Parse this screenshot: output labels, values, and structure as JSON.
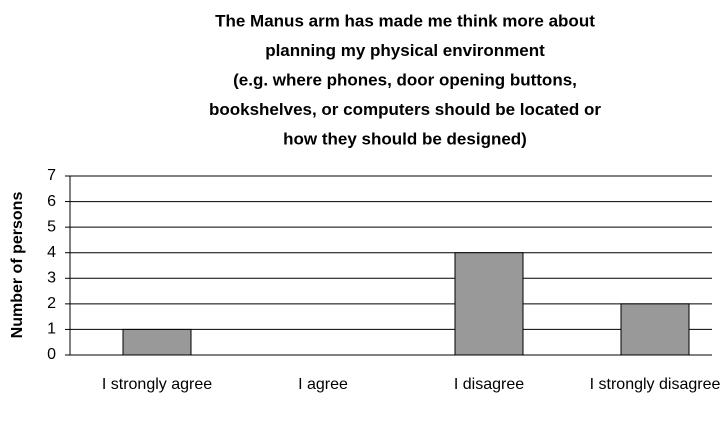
{
  "chart_data": {
    "type": "bar",
    "title_lines": [
      "The Manus arm has made me think more about",
      "planning my physical environment",
      "(e.g. where phones, door opening buttons,",
      "bookshelves, or computers should be located or",
      "how they should be designed)"
    ],
    "y_label": "Number of persons",
    "categories": [
      "I strongly agree",
      "I agree",
      "I disagree",
      "I strongly disagree"
    ],
    "values": [
      1,
      0,
      4,
      2
    ],
    "color": "#999999",
    "ylim": [
      0,
      7
    ],
    "yticks": [
      0,
      1,
      2,
      3,
      4,
      5,
      6,
      7
    ],
    "grid": true
  }
}
